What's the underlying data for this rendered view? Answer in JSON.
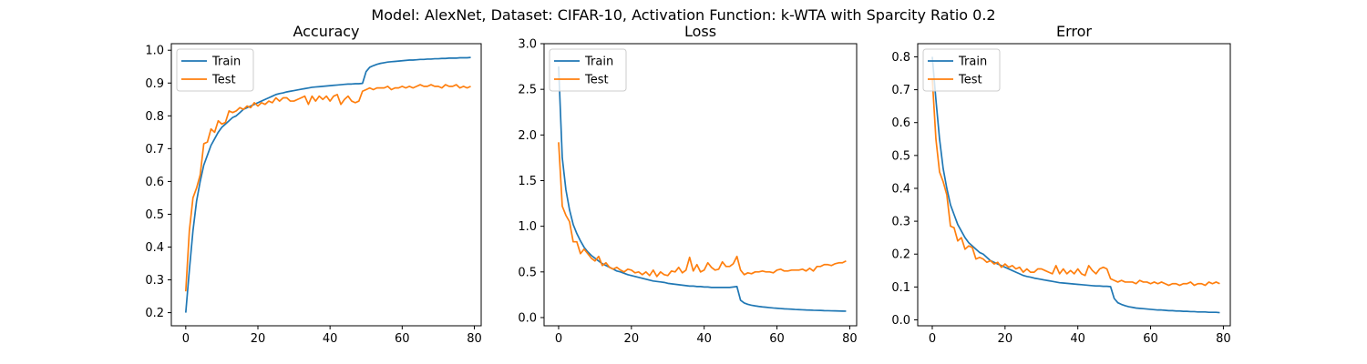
{
  "suptitle": "Model: AlexNet, Dataset: CIFAR-10, Activation Function: k-WTA with Sparcity Ratio 0.2",
  "colors": {
    "train": "#1f77b4",
    "test": "#ff7f0e"
  },
  "chart_data": [
    {
      "type": "line",
      "title": "Accuracy",
      "xlim": [
        -4,
        81.9
      ],
      "ylim": [
        0.16,
        1.02
      ],
      "xticks": [
        0,
        20,
        40,
        60,
        80
      ],
      "yticks": [
        0.2,
        0.3,
        0.4,
        0.5,
        0.6,
        0.7,
        0.8,
        0.9,
        1.0
      ],
      "ytick_labels": [
        "0.2",
        "0.3",
        "0.4",
        "0.5",
        "0.6",
        "0.7",
        "0.8",
        "0.9",
        "1.0"
      ],
      "legend": "top-left",
      "series": [
        {
          "name": "Train",
          "color": "#1f77b4",
          "values": [
            0.2,
            0.33,
            0.45,
            0.54,
            0.6,
            0.65,
            0.68,
            0.71,
            0.73,
            0.75,
            0.765,
            0.775,
            0.785,
            0.795,
            0.8,
            0.81,
            0.82,
            0.825,
            0.83,
            0.835,
            0.84,
            0.845,
            0.85,
            0.855,
            0.86,
            0.865,
            0.868,
            0.87,
            0.873,
            0.875,
            0.877,
            0.879,
            0.881,
            0.883,
            0.885,
            0.887,
            0.888,
            0.889,
            0.89,
            0.891,
            0.892,
            0.893,
            0.894,
            0.895,
            0.896,
            0.897,
            0.897,
            0.898,
            0.898,
            0.899,
            0.935,
            0.948,
            0.953,
            0.957,
            0.96,
            0.962,
            0.964,
            0.965,
            0.966,
            0.967,
            0.968,
            0.969,
            0.97,
            0.97,
            0.971,
            0.972,
            0.972,
            0.973,
            0.973,
            0.974,
            0.974,
            0.975,
            0.975,
            0.976,
            0.976,
            0.976,
            0.977,
            0.977,
            0.977,
            0.978
          ]
        },
        {
          "name": "Test",
          "color": "#ff7f0e",
          "values": [
            0.265,
            0.45,
            0.55,
            0.58,
            0.62,
            0.715,
            0.72,
            0.76,
            0.75,
            0.785,
            0.775,
            0.78,
            0.815,
            0.81,
            0.815,
            0.825,
            0.82,
            0.83,
            0.825,
            0.84,
            0.83,
            0.84,
            0.835,
            0.845,
            0.84,
            0.855,
            0.845,
            0.855,
            0.855,
            0.845,
            0.845,
            0.85,
            0.855,
            0.86,
            0.835,
            0.86,
            0.845,
            0.86,
            0.85,
            0.86,
            0.845,
            0.86,
            0.865,
            0.835,
            0.85,
            0.86,
            0.845,
            0.84,
            0.845,
            0.875,
            0.88,
            0.885,
            0.88,
            0.885,
            0.885,
            0.885,
            0.89,
            0.88,
            0.885,
            0.885,
            0.89,
            0.885,
            0.89,
            0.885,
            0.89,
            0.895,
            0.89,
            0.89,
            0.895,
            0.89,
            0.89,
            0.885,
            0.895,
            0.89,
            0.89,
            0.895,
            0.885,
            0.89,
            0.885,
            0.89
          ]
        }
      ]
    },
    {
      "type": "line",
      "title": "Loss",
      "xlim": [
        -4,
        81.9
      ],
      "ylim": [
        -0.09,
        3.0
      ],
      "xticks": [
        0,
        20,
        40,
        60,
        80
      ],
      "yticks": [
        0.0,
        0.5,
        1.0,
        1.5,
        2.0,
        2.5,
        3.0
      ],
      "ytick_labels": [
        "0.0",
        "0.5",
        "1.0",
        "1.5",
        "2.0",
        "2.5",
        "3.0"
      ],
      "legend": "top-left",
      "series": [
        {
          "name": "Train",
          "color": "#1f77b4",
          "values": [
            2.75,
            1.75,
            1.4,
            1.18,
            1.02,
            0.92,
            0.84,
            0.77,
            0.72,
            0.68,
            0.65,
            0.62,
            0.59,
            0.57,
            0.55,
            0.53,
            0.51,
            0.5,
            0.485,
            0.47,
            0.46,
            0.45,
            0.44,
            0.43,
            0.42,
            0.41,
            0.4,
            0.395,
            0.39,
            0.385,
            0.375,
            0.37,
            0.365,
            0.36,
            0.355,
            0.35,
            0.345,
            0.345,
            0.34,
            0.34,
            0.335,
            0.335,
            0.33,
            0.33,
            0.33,
            0.33,
            0.33,
            0.33,
            0.335,
            0.34,
            0.19,
            0.16,
            0.145,
            0.135,
            0.128,
            0.122,
            0.117,
            0.113,
            0.109,
            0.105,
            0.102,
            0.099,
            0.096,
            0.094,
            0.092,
            0.089,
            0.087,
            0.085,
            0.083,
            0.082,
            0.08,
            0.079,
            0.078,
            0.076,
            0.075,
            0.074,
            0.073,
            0.072,
            0.071,
            0.07
          ]
        },
        {
          "name": "Test",
          "color": "#ff7f0e",
          "values": [
            1.92,
            1.22,
            1.12,
            1.05,
            0.83,
            0.83,
            0.7,
            0.75,
            0.7,
            0.65,
            0.62,
            0.67,
            0.57,
            0.6,
            0.55,
            0.53,
            0.55,
            0.52,
            0.5,
            0.53,
            0.52,
            0.49,
            0.5,
            0.47,
            0.5,
            0.46,
            0.52,
            0.45,
            0.5,
            0.47,
            0.46,
            0.51,
            0.5,
            0.55,
            0.49,
            0.52,
            0.66,
            0.51,
            0.58,
            0.5,
            0.52,
            0.6,
            0.55,
            0.52,
            0.53,
            0.61,
            0.56,
            0.56,
            0.59,
            0.67,
            0.52,
            0.47,
            0.49,
            0.48,
            0.5,
            0.5,
            0.51,
            0.5,
            0.5,
            0.49,
            0.52,
            0.53,
            0.51,
            0.51,
            0.52,
            0.52,
            0.52,
            0.53,
            0.51,
            0.54,
            0.51,
            0.56,
            0.56,
            0.58,
            0.58,
            0.57,
            0.59,
            0.6,
            0.6,
            0.62
          ]
        }
      ]
    },
    {
      "type": "line",
      "title": "Error",
      "xlim": [
        -4,
        81.9
      ],
      "ylim": [
        -0.018,
        0.84
      ],
      "xticks": [
        0,
        20,
        40,
        60,
        80
      ],
      "yticks": [
        0.0,
        0.1,
        0.2,
        0.3,
        0.4,
        0.5,
        0.6,
        0.7,
        0.8
      ],
      "ytick_labels": [
        "0.0",
        "0.1",
        "0.2",
        "0.3",
        "0.4",
        "0.5",
        "0.6",
        "0.7",
        "0.8"
      ],
      "legend": "top-left",
      "series": [
        {
          "name": "Train",
          "color": "#1f77b4",
          "values": [
            0.8,
            0.67,
            0.55,
            0.46,
            0.4,
            0.35,
            0.32,
            0.29,
            0.27,
            0.25,
            0.235,
            0.225,
            0.215,
            0.205,
            0.2,
            0.19,
            0.18,
            0.175,
            0.17,
            0.165,
            0.16,
            0.155,
            0.15,
            0.145,
            0.14,
            0.135,
            0.132,
            0.13,
            0.127,
            0.125,
            0.123,
            0.121,
            0.119,
            0.117,
            0.115,
            0.113,
            0.112,
            0.111,
            0.11,
            0.109,
            0.108,
            0.107,
            0.106,
            0.105,
            0.104,
            0.103,
            0.103,
            0.102,
            0.102,
            0.101,
            0.065,
            0.052,
            0.047,
            0.043,
            0.04,
            0.038,
            0.036,
            0.035,
            0.034,
            0.033,
            0.032,
            0.031,
            0.03,
            0.03,
            0.029,
            0.028,
            0.028,
            0.027,
            0.027,
            0.026,
            0.026,
            0.025,
            0.025,
            0.024,
            0.024,
            0.024,
            0.023,
            0.023,
            0.023,
            0.022
          ]
        },
        {
          "name": "Test",
          "color": "#ff7f0e",
          "values": [
            0.735,
            0.55,
            0.45,
            0.42,
            0.38,
            0.285,
            0.28,
            0.24,
            0.25,
            0.215,
            0.225,
            0.22,
            0.185,
            0.19,
            0.185,
            0.175,
            0.18,
            0.17,
            0.175,
            0.16,
            0.17,
            0.16,
            0.165,
            0.155,
            0.16,
            0.145,
            0.155,
            0.145,
            0.145,
            0.155,
            0.155,
            0.15,
            0.145,
            0.14,
            0.165,
            0.14,
            0.155,
            0.14,
            0.15,
            0.14,
            0.155,
            0.14,
            0.135,
            0.165,
            0.15,
            0.14,
            0.155,
            0.16,
            0.155,
            0.125,
            0.12,
            0.115,
            0.12,
            0.115,
            0.115,
            0.115,
            0.11,
            0.12,
            0.115,
            0.115,
            0.11,
            0.115,
            0.11,
            0.115,
            0.11,
            0.105,
            0.11,
            0.11,
            0.105,
            0.11,
            0.11,
            0.115,
            0.105,
            0.11,
            0.11,
            0.105,
            0.115,
            0.11,
            0.115,
            0.11
          ]
        }
      ]
    }
  ]
}
